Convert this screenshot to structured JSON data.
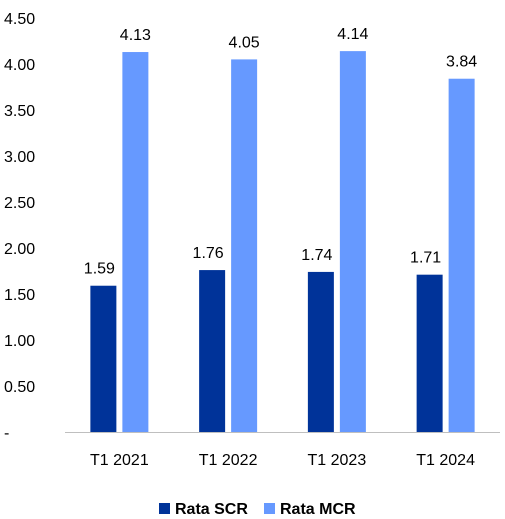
{
  "chart_data": {
    "type": "bar",
    "categories": [
      "T1 2021",
      "T1 2022",
      "T1 2023",
      "T1 2024"
    ],
    "series": [
      {
        "name": "Rata SCR",
        "values": [
          1.59,
          1.76,
          1.74,
          1.71
        ],
        "color": "#003399",
        "labels": [
          "1.59",
          "1.76",
          "1.74",
          "1.71"
        ]
      },
      {
        "name": "Rata MCR",
        "values": [
          4.13,
          4.05,
          4.14,
          3.84
        ],
        "color": "#6699ff",
        "labels": [
          "4.13",
          "4.05",
          "4.14",
          "3.84"
        ]
      }
    ],
    "ylim": [
      0,
      4.5
    ],
    "y_ticks": [
      0,
      0.5,
      1.0,
      1.5,
      2.0,
      2.5,
      3.0,
      3.5,
      4.0,
      4.5
    ],
    "y_tick_labels": [
      "-",
      "0.50",
      "1.00",
      "1.50",
      "2.00",
      "2.50",
      "3.00",
      "3.50",
      "4.00",
      "4.50"
    ],
    "title": "",
    "xlabel": "",
    "ylabel": "",
    "grid": false,
    "legend_position": "bottom"
  }
}
